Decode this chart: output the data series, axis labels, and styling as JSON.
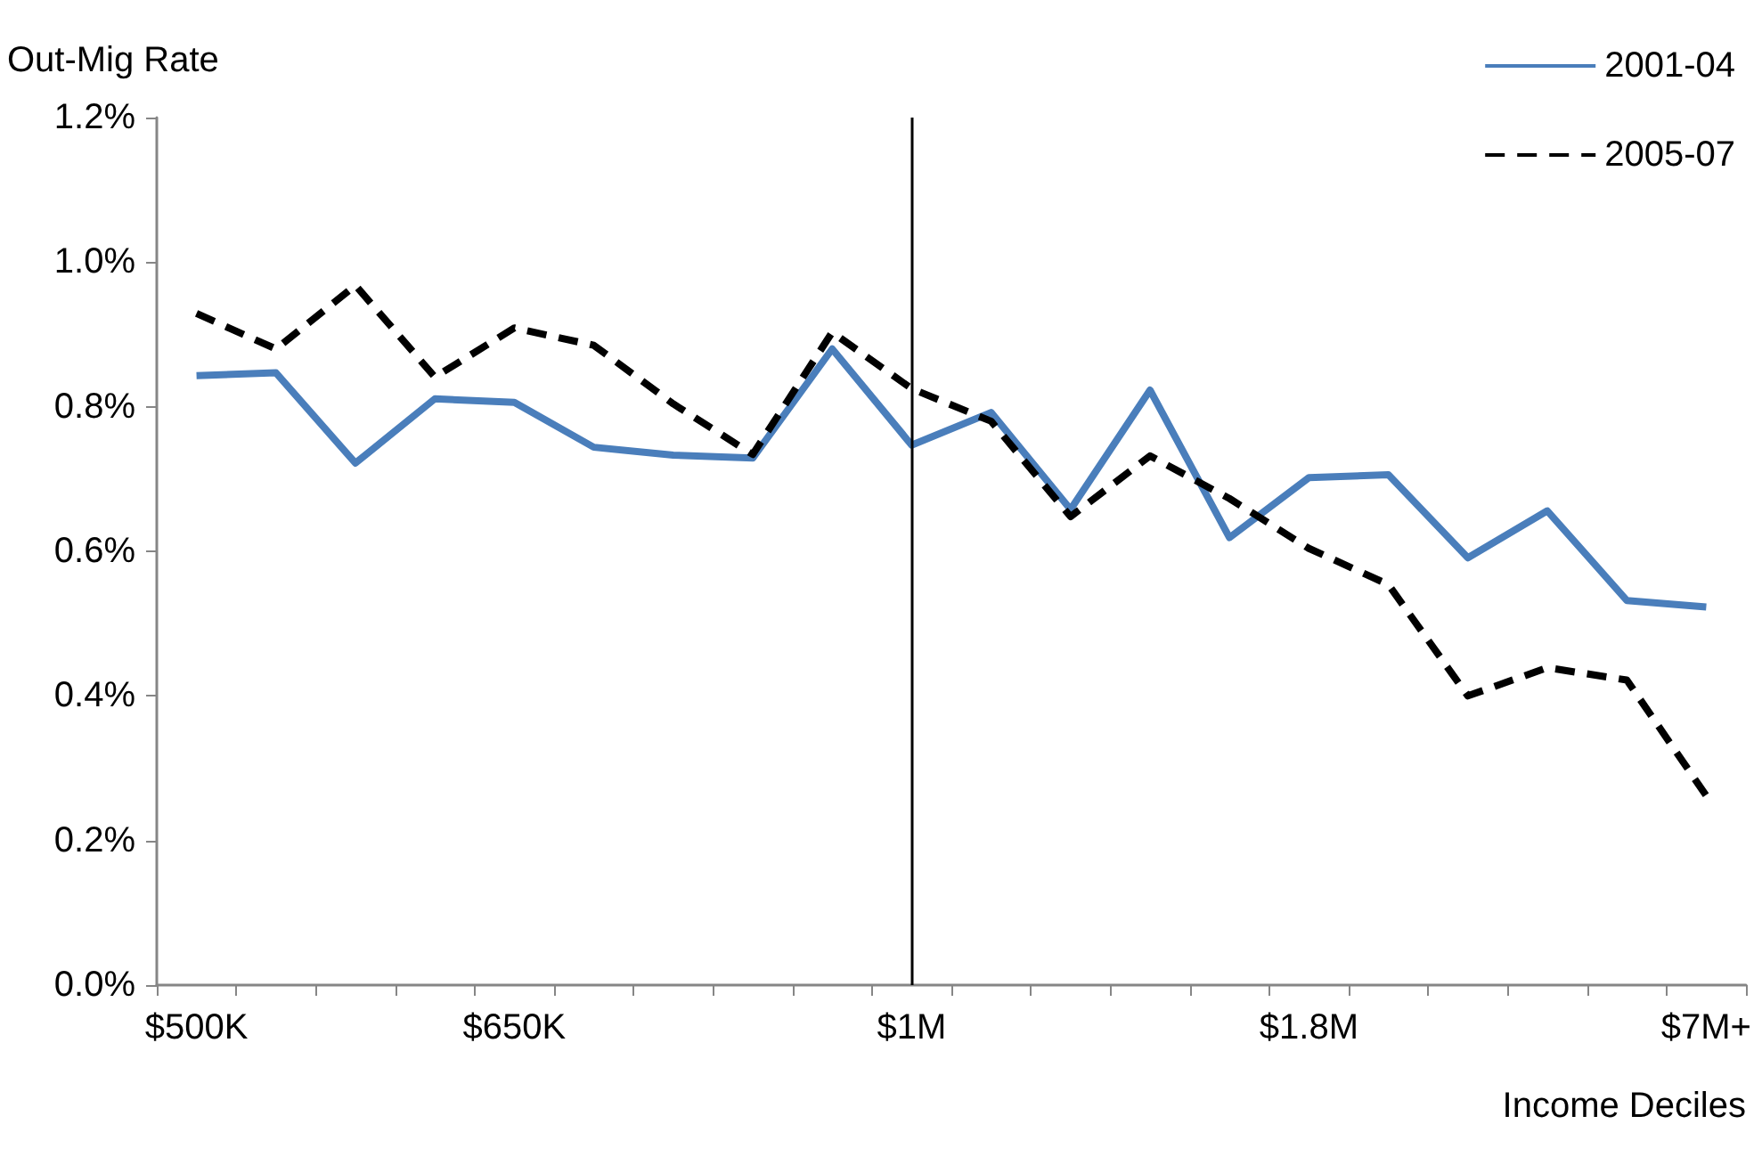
{
  "chart_data": {
    "type": "line",
    "ylabel": "Out-Mig Rate",
    "xlabel": "Income Deciles",
    "categories": [
      "$500K",
      null,
      null,
      null,
      "$650K",
      null,
      null,
      null,
      null,
      "$1M",
      null,
      null,
      null,
      null,
      "$1.8M",
      null,
      null,
      null,
      null,
      "$7M+"
    ],
    "series": [
      {
        "name": "2001-04",
        "color": "#4a7ebb",
        "line_style": "solid",
        "values": [
          0.843,
          0.847,
          0.722,
          0.811,
          0.806,
          0.744,
          0.733,
          0.729,
          0.88,
          0.747,
          0.792,
          0.658,
          0.823,
          0.619,
          0.702,
          0.706,
          0.591,
          0.656,
          0.532,
          0.523
        ]
      },
      {
        "name": "2005-07",
        "color": "#000000",
        "line_style": "dashed",
        "values": [
          0.929,
          0.88,
          0.968,
          0.841,
          0.909,
          0.885,
          0.804,
          0.734,
          0.903,
          0.825,
          0.78,
          0.648,
          0.732,
          0.673,
          0.604,
          0.554,
          0.4,
          0.439,
          0.422,
          0.262
        ]
      }
    ],
    "ylim": [
      0,
      1.2
    ],
    "yticks": [
      {
        "value": 0,
        "label": "0.0%"
      },
      {
        "value": 0.2,
        "label": "0.2%"
      },
      {
        "value": 0.4,
        "label": "0.4%"
      },
      {
        "value": 0.6,
        "label": "0.6%"
      },
      {
        "value": 0.8,
        "label": "0.8%"
      },
      {
        "value": 1.0,
        "label": "1.0%"
      },
      {
        "value": 1.2,
        "label": "1.2%"
      }
    ],
    "ref_lines": [
      {
        "axis": "x",
        "value": "$1M",
        "color": "#000000"
      }
    ],
    "grid": false,
    "legend": "top right",
    "marker": "none"
  }
}
